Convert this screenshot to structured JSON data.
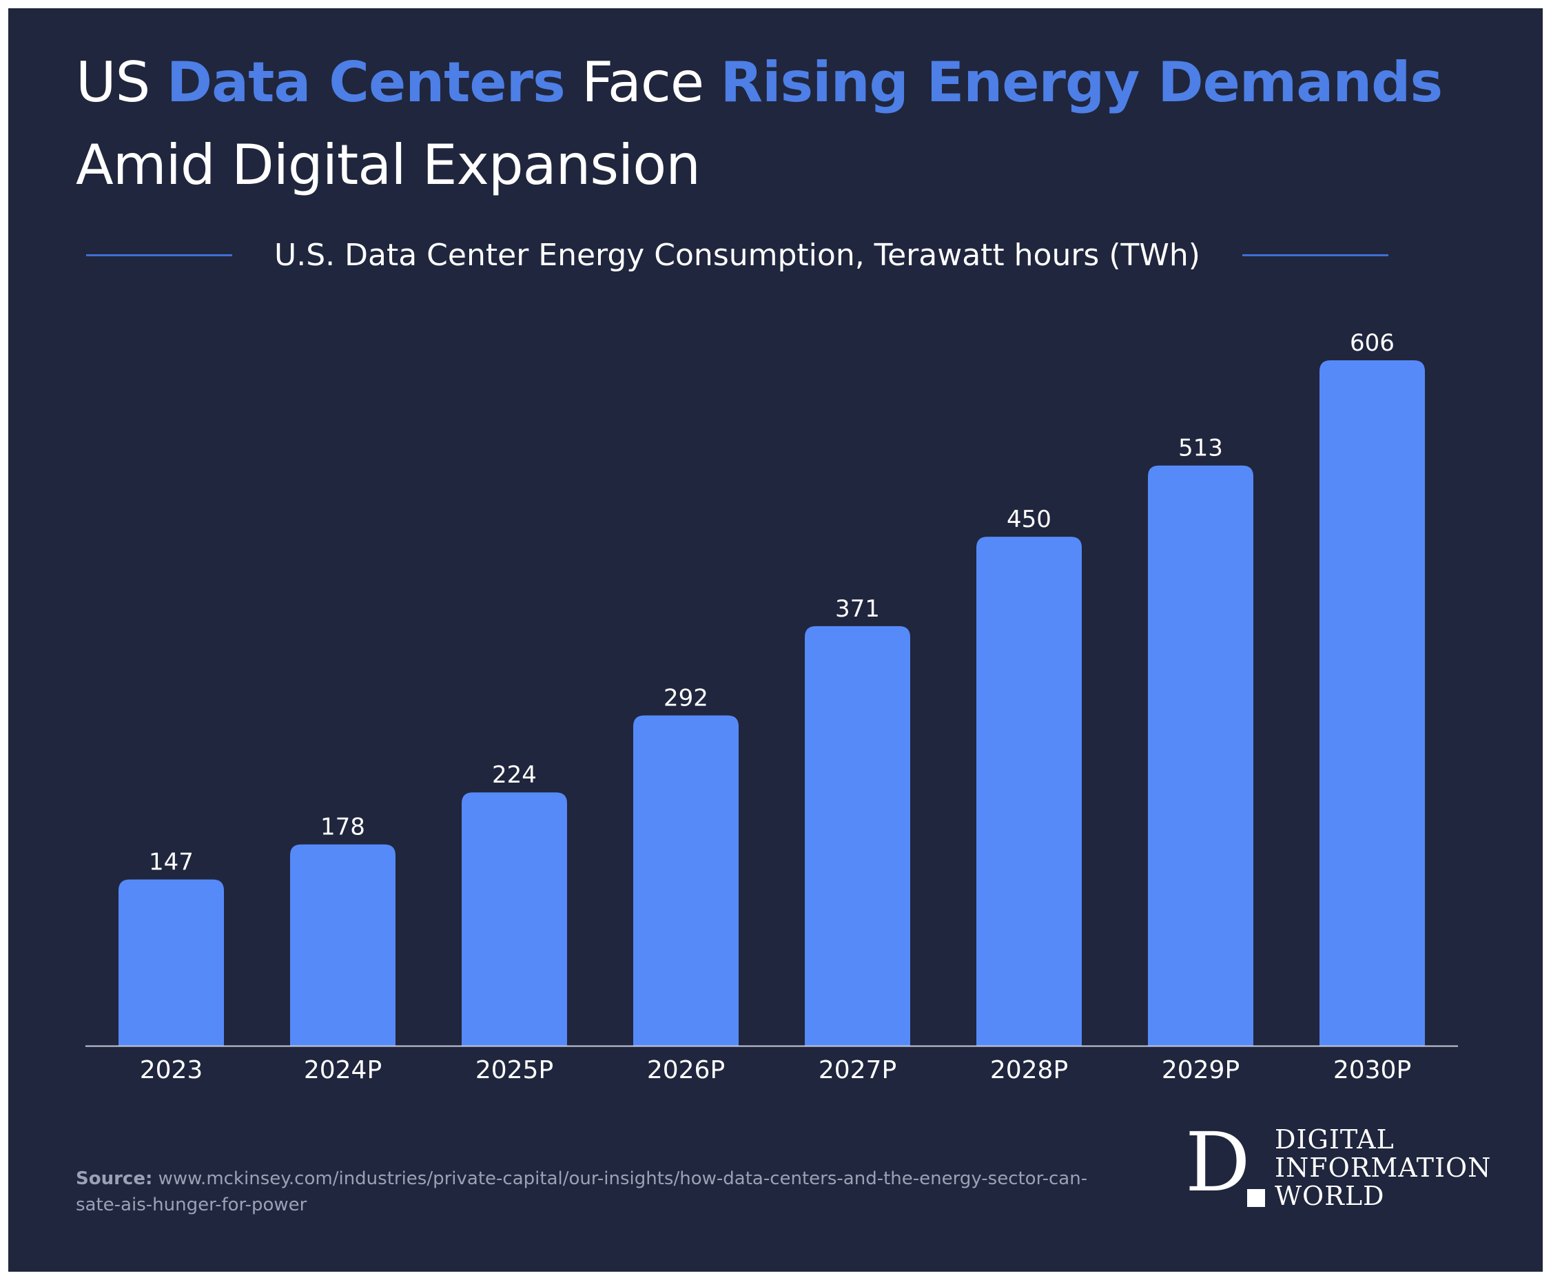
{
  "title": {
    "part1": "US ",
    "highlight1": "Data Centers",
    "part2": " Face ",
    "highlight2": "Rising Energy Demands",
    "part3": " Amid Digital Expansion"
  },
  "colors": {
    "background": "#20263d",
    "bar": "#568af9",
    "title_highlight": "#4d7fe6",
    "text": "#ffffff"
  },
  "chart_data": {
    "type": "bar",
    "title": "U.S. Data Center Energy Consumption, Terawatt hours (TWh)",
    "categories": [
      "2023",
      "2024P",
      "2025P",
      "2026P",
      "2027P",
      "2028P",
      "2029P",
      "2030P"
    ],
    "values": [
      147,
      178,
      224,
      292,
      371,
      450,
      513,
      606
    ],
    "data_labels": [
      "147",
      "178",
      "224",
      "292",
      "371",
      "450",
      "513",
      "606"
    ],
    "xlabel": "",
    "ylabel": "",
    "ylim": [
      0,
      606
    ],
    "grid": false,
    "legend": "none"
  },
  "source": {
    "label": "Source:",
    "text": "www.mckinsey.com/industries/private-capital/our-insights/how-data-centers-and-the-energy-sector-can-sate-ais-hunger-for-power"
  },
  "logo": {
    "letter": "D",
    "line1": "DIGITAL",
    "line2": "INFORMATION",
    "line3": "WORLD"
  }
}
